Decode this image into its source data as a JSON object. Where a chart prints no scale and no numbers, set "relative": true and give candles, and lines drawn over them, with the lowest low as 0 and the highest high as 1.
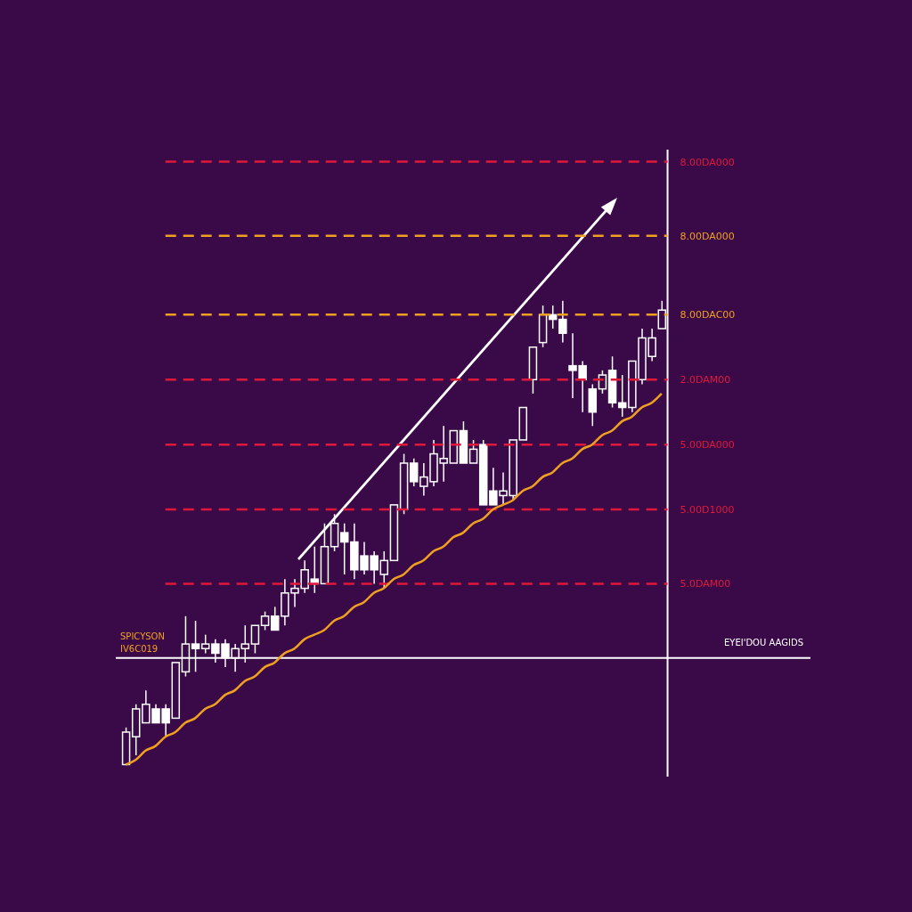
{
  "chart_data": {
    "type": "candlestick",
    "relative": true,
    "color": "#ffffff",
    "categories": [
      null,
      null,
      null,
      null,
      null,
      null,
      null,
      null,
      null,
      null,
      null,
      null,
      null,
      null,
      null,
      null,
      null,
      null,
      null,
      null,
      null,
      null,
      null,
      null,
      null,
      null,
      null,
      null,
      null,
      null,
      null,
      null,
      null,
      null,
      null,
      null,
      null,
      null,
      null,
      null,
      null,
      null,
      null,
      null,
      null,
      null,
      null,
      null,
      null,
      null,
      null,
      null,
      null,
      null,
      null
    ],
    "ohlc": [
      [
        0.0,
        0.08,
        0.0,
        0.07
      ],
      [
        0.06,
        0.13,
        0.02,
        0.12
      ],
      [
        0.09,
        0.16,
        0.09,
        0.13
      ],
      [
        0.12,
        0.13,
        0.09,
        0.09
      ],
      [
        0.12,
        0.13,
        0.06,
        0.09
      ],
      [
        0.1,
        0.22,
        0.1,
        0.22
      ],
      [
        0.2,
        0.32,
        0.19,
        0.26
      ],
      [
        0.26,
        0.31,
        0.2,
        0.25
      ],
      [
        0.25,
        0.28,
        0.24,
        0.26
      ],
      [
        0.26,
        0.27,
        0.22,
        0.24
      ],
      [
        0.26,
        0.27,
        0.21,
        0.23
      ],
      [
        0.23,
        0.26,
        0.2,
        0.25
      ],
      [
        0.25,
        0.3,
        0.22,
        0.26
      ],
      [
        0.26,
        0.3,
        0.24,
        0.3
      ],
      [
        0.3,
        0.33,
        0.29,
        0.32
      ],
      [
        0.32,
        0.34,
        0.29,
        0.29
      ],
      [
        0.32,
        0.4,
        0.3,
        0.37
      ],
      [
        0.37,
        0.4,
        0.34,
        0.38
      ],
      [
        0.38,
        0.44,
        0.37,
        0.42
      ],
      [
        0.4,
        0.47,
        0.37,
        0.39
      ],
      [
        0.39,
        0.52,
        0.39,
        0.47
      ],
      [
        0.47,
        0.54,
        0.46,
        0.52
      ],
      [
        0.5,
        0.52,
        0.41,
        0.48
      ],
      [
        0.48,
        0.52,
        0.4,
        0.42
      ],
      [
        0.45,
        0.48,
        0.41,
        0.42
      ],
      [
        0.45,
        0.46,
        0.39,
        0.42
      ],
      [
        0.41,
        0.46,
        0.38,
        0.44
      ],
      [
        0.44,
        0.56,
        0.44,
        0.56
      ],
      [
        0.55,
        0.67,
        0.54,
        0.65
      ],
      [
        0.65,
        0.66,
        0.6,
        0.61
      ],
      [
        0.6,
        0.65,
        0.58,
        0.62
      ],
      [
        0.61,
        0.7,
        0.6,
        0.67
      ],
      [
        0.65,
        0.73,
        0.61,
        0.66
      ],
      [
        0.65,
        0.72,
        0.65,
        0.72
      ],
      [
        0.72,
        0.74,
        0.65,
        0.65
      ],
      [
        0.65,
        0.7,
        0.65,
        0.68
      ],
      [
        0.69,
        0.7,
        0.56,
        0.56
      ],
      [
        0.59,
        0.64,
        0.56,
        0.56
      ],
      [
        0.58,
        0.63,
        0.56,
        0.59
      ],
      [
        0.58,
        0.7,
        0.57,
        0.7
      ],
      [
        0.7,
        0.77,
        0.7,
        0.77
      ],
      [
        0.83,
        0.9,
        0.8,
        0.9
      ],
      [
        0.91,
        0.99,
        0.9,
        0.97
      ],
      [
        0.97,
        0.99,
        0.94,
        0.96
      ],
      [
        0.96,
        1.0,
        0.91,
        0.93
      ],
      [
        0.86,
        0.93,
        0.79,
        0.85
      ],
      [
        0.86,
        0.87,
        0.76,
        0.83
      ],
      [
        0.81,
        0.82,
        0.73,
        0.76
      ],
      [
        0.81,
        0.85,
        0.8,
        0.84
      ],
      [
        0.85,
        0.88,
        0.77,
        0.78
      ],
      [
        0.78,
        0.84,
        0.75,
        0.77
      ],
      [
        0.77,
        0.87,
        0.76,
        0.87
      ],
      [
        0.83,
        0.94,
        0.82,
        0.92
      ],
      [
        0.88,
        0.94,
        0.87,
        0.92
      ],
      [
        0.94,
        1.0,
        0.94,
        0.98
      ]
    ],
    "series": [
      {
        "type": "line",
        "color": "#f0a020",
        "values": [
          0,
          0.01,
          0.03,
          0.04,
          0.06,
          0.07,
          0.09,
          0.1,
          0.12,
          0.13,
          0.15,
          0.16,
          0.18,
          0.19,
          0.21,
          0.22,
          0.24,
          0.25,
          0.27,
          0.28,
          0.29,
          0.31,
          0.32,
          0.34,
          0.35,
          0.37,
          0.38,
          0.4,
          0.41,
          0.43,
          0.44,
          0.46,
          0.47,
          0.49,
          0.5,
          0.52,
          0.53,
          0.55,
          0.56,
          0.57,
          0.59,
          0.6,
          0.62,
          0.63,
          0.65,
          0.66,
          0.68,
          0.69,
          0.71,
          0.72,
          0.74,
          0.75,
          0.77,
          0.78,
          0.8
        ]
      }
    ],
    "ref_lines": [
      {
        "axis": "y",
        "value": 1.3,
        "label": "8.00DA000",
        "color": "#e0193a",
        "line_style": "dashed"
      },
      {
        "axis": "y",
        "value": 1.14,
        "label": "8.00DA000",
        "color": "#f0a020",
        "line_style": "dashed"
      },
      {
        "axis": "y",
        "value": 0.97,
        "label": "8.00DAC00",
        "color": "#f0a020",
        "line_style": "dashed"
      },
      {
        "axis": "y",
        "value": 0.83,
        "label": "2.0DAM00",
        "color": "#e0193a",
        "line_style": "dashed"
      },
      {
        "axis": "y",
        "value": 0.69,
        "label": "5.00DA000",
        "color": "#e0193a",
        "line_style": "dashed"
      },
      {
        "axis": "y",
        "value": 0.55,
        "label": "5.00D1000",
        "color": "#e0193a",
        "line_style": "dashed"
      },
      {
        "axis": "y",
        "value": 0.39,
        "label": "5.0DAM00",
        "color": "#e0193a",
        "line_style": "dashed"
      },
      {
        "axis": "y",
        "value": 0.23,
        "label": "EYEI'DOU AAGIDS",
        "color": "#ffffff",
        "line_style": "solid"
      }
    ],
    "annotations": [
      "SPICYSON",
      "IV6C019"
    ]
  }
}
